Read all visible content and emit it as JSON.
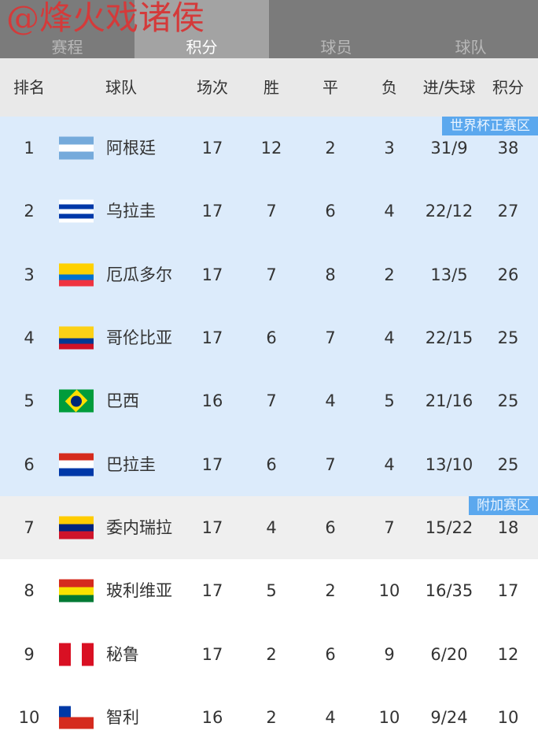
{
  "watermark": "@烽火戏诸侯",
  "tabs": [
    {
      "label": "赛程",
      "active": false
    },
    {
      "label": "积分",
      "active": true
    },
    {
      "label": "球员",
      "active": false
    },
    {
      "label": "球队",
      "active": false
    }
  ],
  "headers": {
    "rank": "排名",
    "team": "球队",
    "played": "场次",
    "win": "胜",
    "draw": "平",
    "loss": "负",
    "goals": "进/失球",
    "points": "积分"
  },
  "zones": {
    "world_cup": "世界杯正赛区",
    "playoff": "附加赛区"
  },
  "colors": {
    "world_cup_bg": "#dcebfb",
    "playoff_bg": "#efefef",
    "badge": "#5ba8ee"
  },
  "rows": [
    {
      "rank": "1",
      "team": "阿根廷",
      "flag": "argentina",
      "played": "17",
      "win": "12",
      "draw": "2",
      "loss": "3",
      "goals": "31/9",
      "points": "38",
      "zone": "wc"
    },
    {
      "rank": "2",
      "team": "乌拉圭",
      "flag": "uruguay",
      "played": "17",
      "win": "7",
      "draw": "6",
      "loss": "4",
      "goals": "22/12",
      "points": "27",
      "zone": "wc"
    },
    {
      "rank": "3",
      "team": "厄瓜多尔",
      "flag": "ecuador",
      "played": "17",
      "win": "7",
      "draw": "8",
      "loss": "2",
      "goals": "13/5",
      "points": "26",
      "zone": "wc"
    },
    {
      "rank": "4",
      "team": "哥伦比亚",
      "flag": "colombia",
      "played": "17",
      "win": "6",
      "draw": "7",
      "loss": "4",
      "goals": "22/15",
      "points": "25",
      "zone": "wc"
    },
    {
      "rank": "5",
      "team": "巴西",
      "flag": "brazil",
      "played": "16",
      "win": "7",
      "draw": "4",
      "loss": "5",
      "goals": "21/16",
      "points": "25",
      "zone": "wc"
    },
    {
      "rank": "6",
      "team": "巴拉圭",
      "flag": "paraguay",
      "played": "17",
      "win": "6",
      "draw": "7",
      "loss": "4",
      "goals": "13/10",
      "points": "25",
      "zone": "wc"
    },
    {
      "rank": "7",
      "team": "委内瑞拉",
      "flag": "venezuela",
      "played": "17",
      "win": "4",
      "draw": "6",
      "loss": "7",
      "goals": "15/22",
      "points": "18",
      "zone": "po"
    },
    {
      "rank": "8",
      "team": "玻利维亚",
      "flag": "bolivia",
      "played": "17",
      "win": "5",
      "draw": "2",
      "loss": "10",
      "goals": "16/35",
      "points": "17",
      "zone": "none"
    },
    {
      "rank": "9",
      "team": "秘鲁",
      "flag": "peru",
      "played": "17",
      "win": "2",
      "draw": "6",
      "loss": "9",
      "goals": "6/20",
      "points": "12",
      "zone": "none"
    },
    {
      "rank": "10",
      "team": "智利",
      "flag": "chile",
      "played": "16",
      "win": "2",
      "draw": "4",
      "loss": "10",
      "goals": "9/24",
      "points": "10",
      "zone": "none"
    }
  ]
}
